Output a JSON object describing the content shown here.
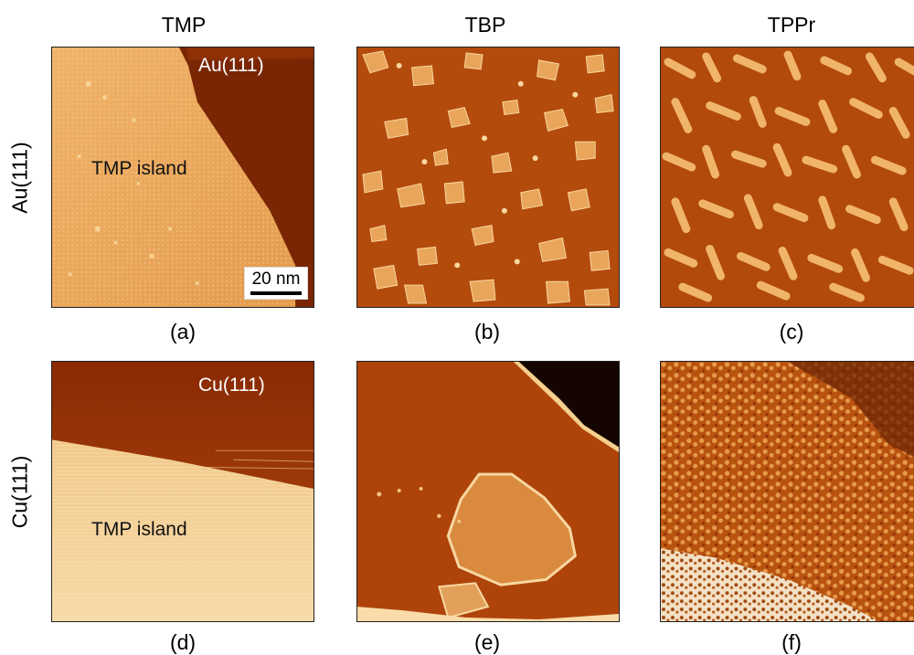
{
  "columns": [
    "TMP",
    "TBP",
    "TPPr"
  ],
  "rows": [
    "Au(111)",
    "Cu(111)"
  ],
  "captions": [
    "(a)",
    "(b)",
    "(c)",
    "(d)",
    "(e)",
    "(f)"
  ],
  "panel_a": {
    "substrate_label": "Au(111)",
    "island_label": "TMP island",
    "scale_bar": "20 nm"
  },
  "panel_d": {
    "substrate_label": "Cu(111)",
    "island_label": "TMP island"
  },
  "colors": {
    "substrate_dark": "#8a2e05",
    "island_light": "#e8a458",
    "highlight": "#fce0a8",
    "mid_orange": "#c2570f",
    "deep_shadow": "#1a0600"
  }
}
